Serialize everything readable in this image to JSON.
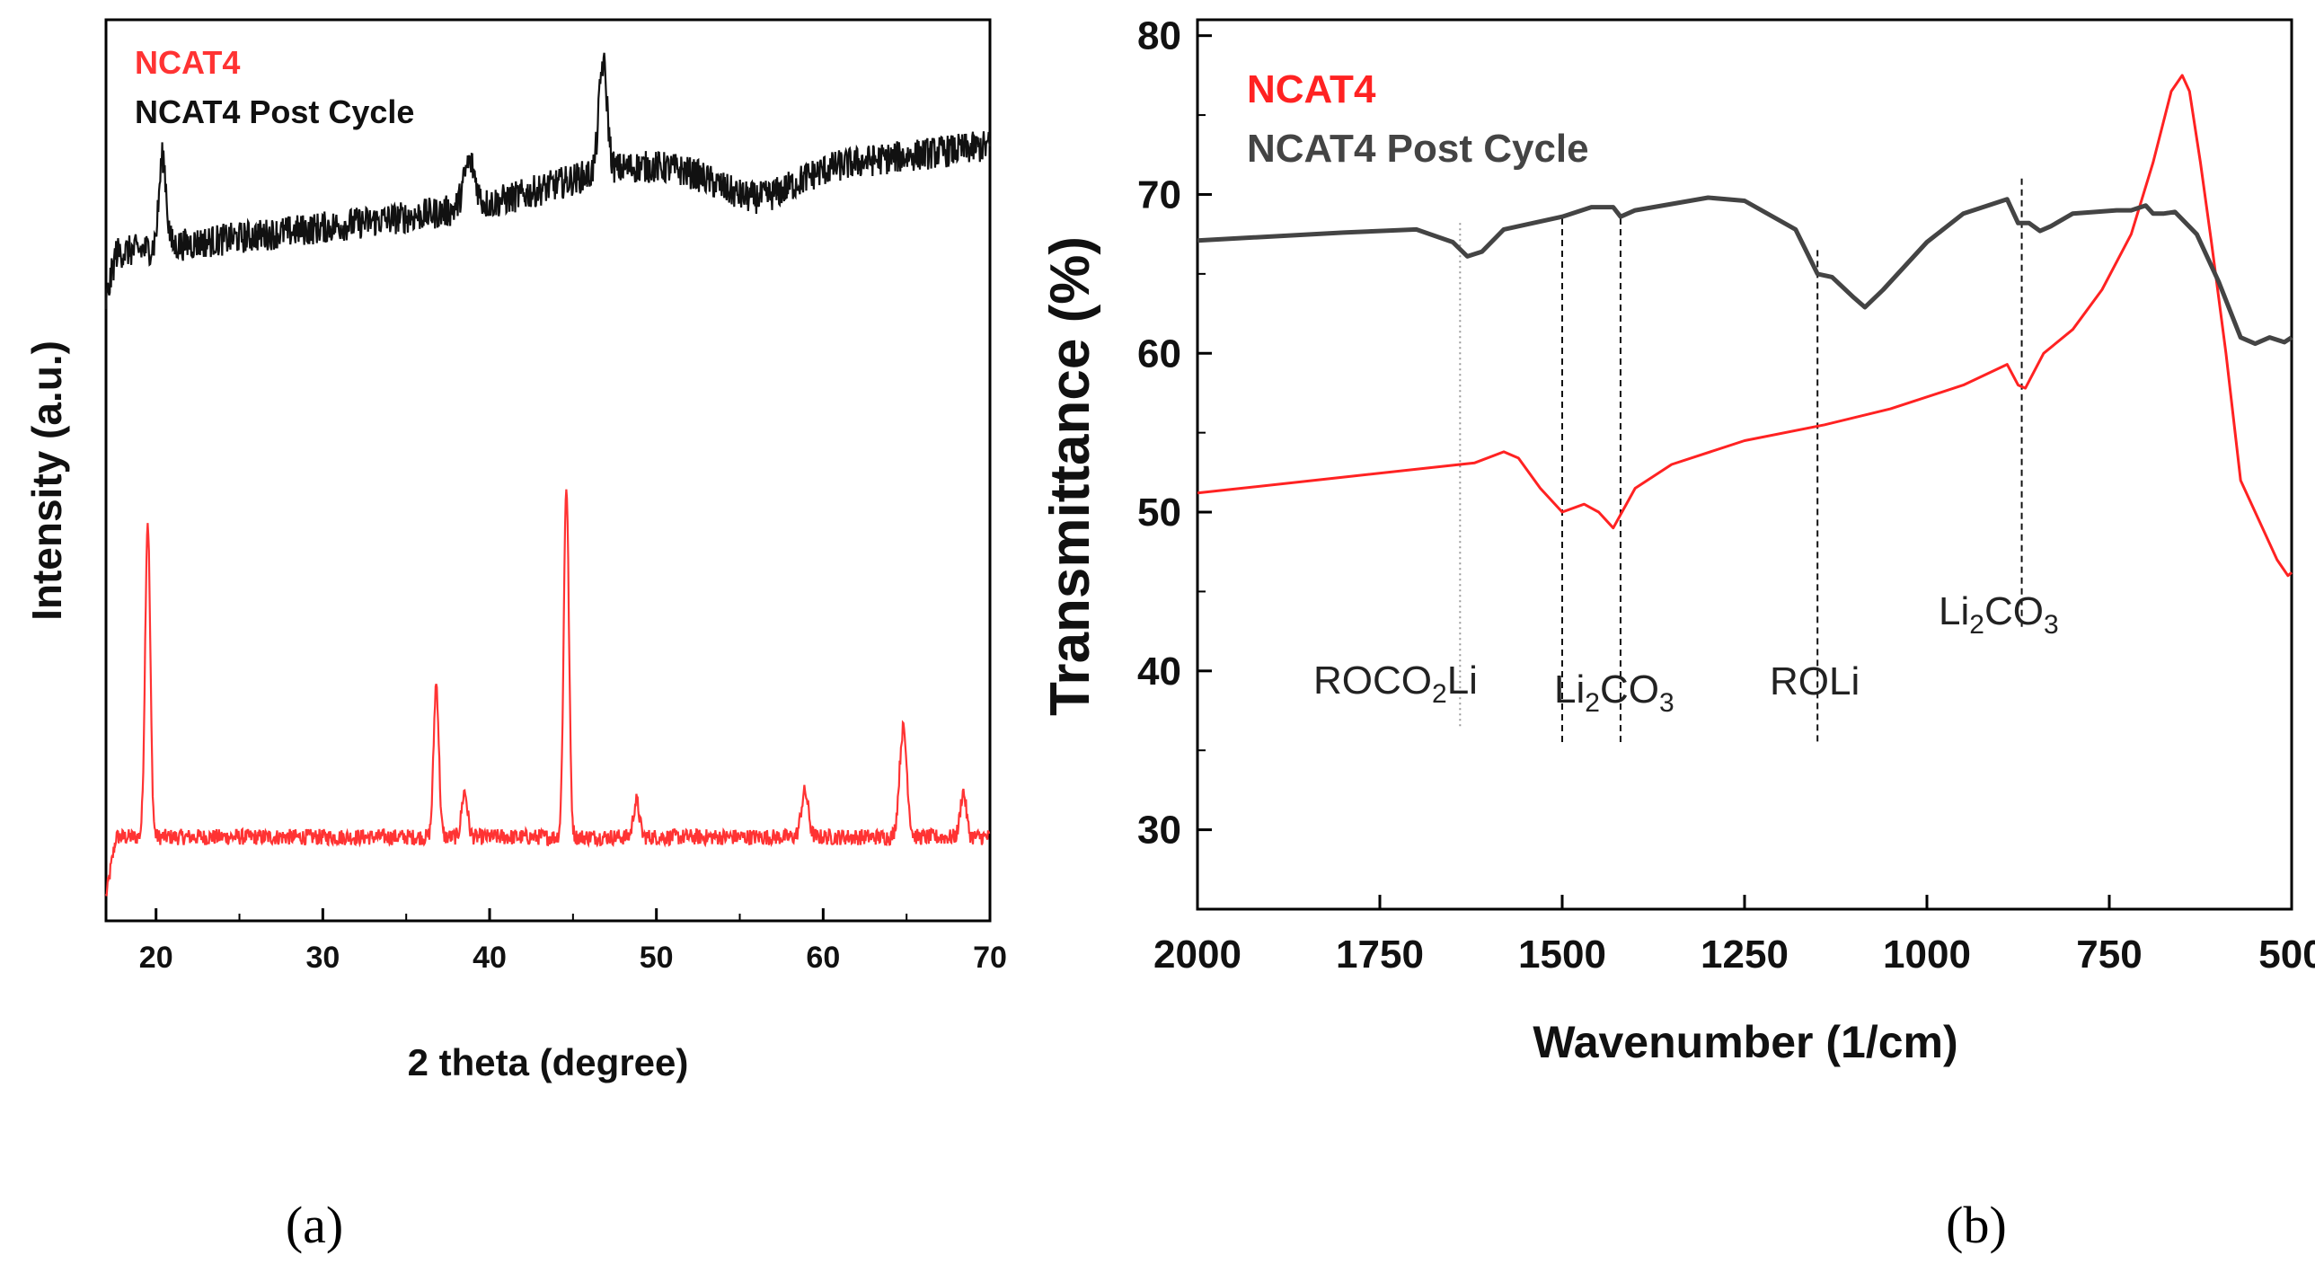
{
  "chart_data": [
    {
      "panel": "(a)",
      "type": "line",
      "title": "",
      "xlabel": "2 theta (degree)",
      "ylabel": "Intensity (a.u.)",
      "xlim": [
        17,
        70
      ],
      "ylim": [
        0,
        100
      ],
      "xticks": [
        20,
        30,
        40,
        50,
        60,
        70
      ],
      "yticks_shown": false,
      "legend": {
        "placement": "top-left",
        "entries": [
          {
            "label": "NCAT4",
            "color": "#ff3333"
          },
          {
            "label": "NCAT4 Post Cycle",
            "color": "#111111"
          }
        ]
      },
      "series": [
        {
          "name": "NCAT4",
          "color": "#ff3333",
          "baseline": 9.3,
          "noise": 0.9,
          "peaks": [
            [
              19.5,
              35,
              0.22
            ],
            [
              36.8,
              17,
              0.22
            ],
            [
              38.5,
              5,
              0.25
            ],
            [
              44.6,
              39,
              0.22
            ],
            [
              48.8,
              4,
              0.25
            ],
            [
              58.9,
              5,
              0.3
            ],
            [
              64.8,
              12,
              0.32
            ],
            [
              68.4,
              5,
              0.25
            ]
          ],
          "start_drop": true
        },
        {
          "name": "NCAT4 Post Cycle",
          "color": "#111111",
          "baseline_start": 74,
          "baseline_end": 86,
          "noise": 1.8,
          "peaks": [
            [
              20.4,
              10,
              0.3
            ],
            [
              38.8,
              5,
              0.5
            ],
            [
              46.8,
              12,
              0.35
            ]
          ],
          "start_drop": true
        }
      ]
    },
    {
      "panel": "(b)",
      "type": "line",
      "title": "",
      "xlabel": "Wavenumber (1/cm)",
      "ylabel": "Transmittance (%)",
      "xlim": [
        2000,
        500
      ],
      "ylim": [
        25,
        81
      ],
      "xticks": [
        2000,
        1750,
        1500,
        1250,
        1000,
        750,
        500
      ],
      "yticks": [
        30,
        40,
        50,
        60,
        70,
        80
      ],
      "legend": {
        "placement": "top-left",
        "entries": [
          {
            "label": "NCAT4",
            "color": "#ff2222"
          },
          {
            "label": "NCAT4 Post Cycle",
            "color": "#444444"
          }
        ]
      },
      "series": [
        {
          "name": "NCAT4",
          "color": "#ff2222",
          "x": [
            2000,
            1800,
            1640,
            1620,
            1580,
            1560,
            1530,
            1500,
            1470,
            1450,
            1430,
            1400,
            1350,
            1250,
            1140,
            1050,
            950,
            890,
            875,
            865,
            840,
            800,
            760,
            720,
            690,
            665,
            650,
            640,
            625,
            610,
            590,
            570,
            545,
            520,
            505,
            500
          ],
          "y": [
            51.2,
            52.2,
            53.0,
            53.1,
            53.8,
            53.4,
            51.5,
            50.0,
            50.5,
            50.0,
            49.0,
            51.5,
            53.0,
            54.5,
            55.5,
            56.5,
            58.0,
            59.3,
            58.0,
            57.8,
            60.0,
            61.5,
            64.0,
            67.5,
            72.0,
            76.5,
            77.5,
            76.5,
            72.0,
            67.0,
            60.0,
            52.0,
            49.5,
            47.0,
            46.0,
            46.2
          ]
        },
        {
          "name": "NCAT4 Post Cycle",
          "color": "#444444",
          "x": [
            2000,
            1800,
            1700,
            1650,
            1630,
            1610,
            1580,
            1500,
            1460,
            1430,
            1420,
            1400,
            1300,
            1250,
            1180,
            1150,
            1130,
            1100,
            1085,
            1060,
            1000,
            950,
            890,
            875,
            860,
            845,
            830,
            800,
            740,
            720,
            700,
            690,
            675,
            660,
            630,
            600,
            570,
            550,
            530,
            510,
            500
          ],
          "y": [
            67.1,
            67.6,
            67.8,
            67.0,
            66.1,
            66.4,
            67.8,
            68.6,
            69.2,
            69.2,
            68.6,
            69.0,
            69.8,
            69.6,
            67.8,
            65.0,
            64.8,
            63.5,
            62.9,
            64.0,
            67.0,
            68.8,
            69.7,
            68.2,
            68.2,
            67.7,
            68.0,
            68.8,
            69.0,
            69.0,
            69.3,
            68.8,
            68.8,
            68.9,
            67.5,
            64.5,
            61.0,
            60.6,
            61.0,
            60.7,
            61.0
          ]
        }
      ],
      "annotations": [
        {
          "kind": "vline",
          "x": 1640,
          "style": "dotted",
          "label": "ROCO2Li",
          "sub_label": {
            "base": "ROCO",
            "sub": "2",
            "tail": "Li"
          }
        },
        {
          "kind": "vline",
          "x": 1500,
          "style": "dashed",
          "label": ""
        },
        {
          "kind": "vline",
          "x": 1420,
          "style": "dashed",
          "label": "Li2CO3",
          "sub_label": {
            "base": "Li",
            "sub": "2",
            "mid": "CO",
            "sub2": "3"
          }
        },
        {
          "kind": "vline",
          "x": 1150,
          "style": "dashed",
          "label": "ROLi"
        },
        {
          "kind": "vline",
          "x": 870,
          "style": "dashed",
          "label": "Li2CO3",
          "sub_label": {
            "base": "Li",
            "sub": "2",
            "mid": "CO",
            "sub2": "3"
          }
        }
      ],
      "text_labels": {
        "roco2li": {
          "base": "ROCO",
          "sub": "2",
          "tail": "Li"
        },
        "li2co3": {
          "base": "Li",
          "sub": "2",
          "mid": "CO",
          "sub2": "3"
        },
        "roli": "ROLi"
      }
    }
  ],
  "captions": {
    "a": "(a)",
    "b": "(b)"
  }
}
